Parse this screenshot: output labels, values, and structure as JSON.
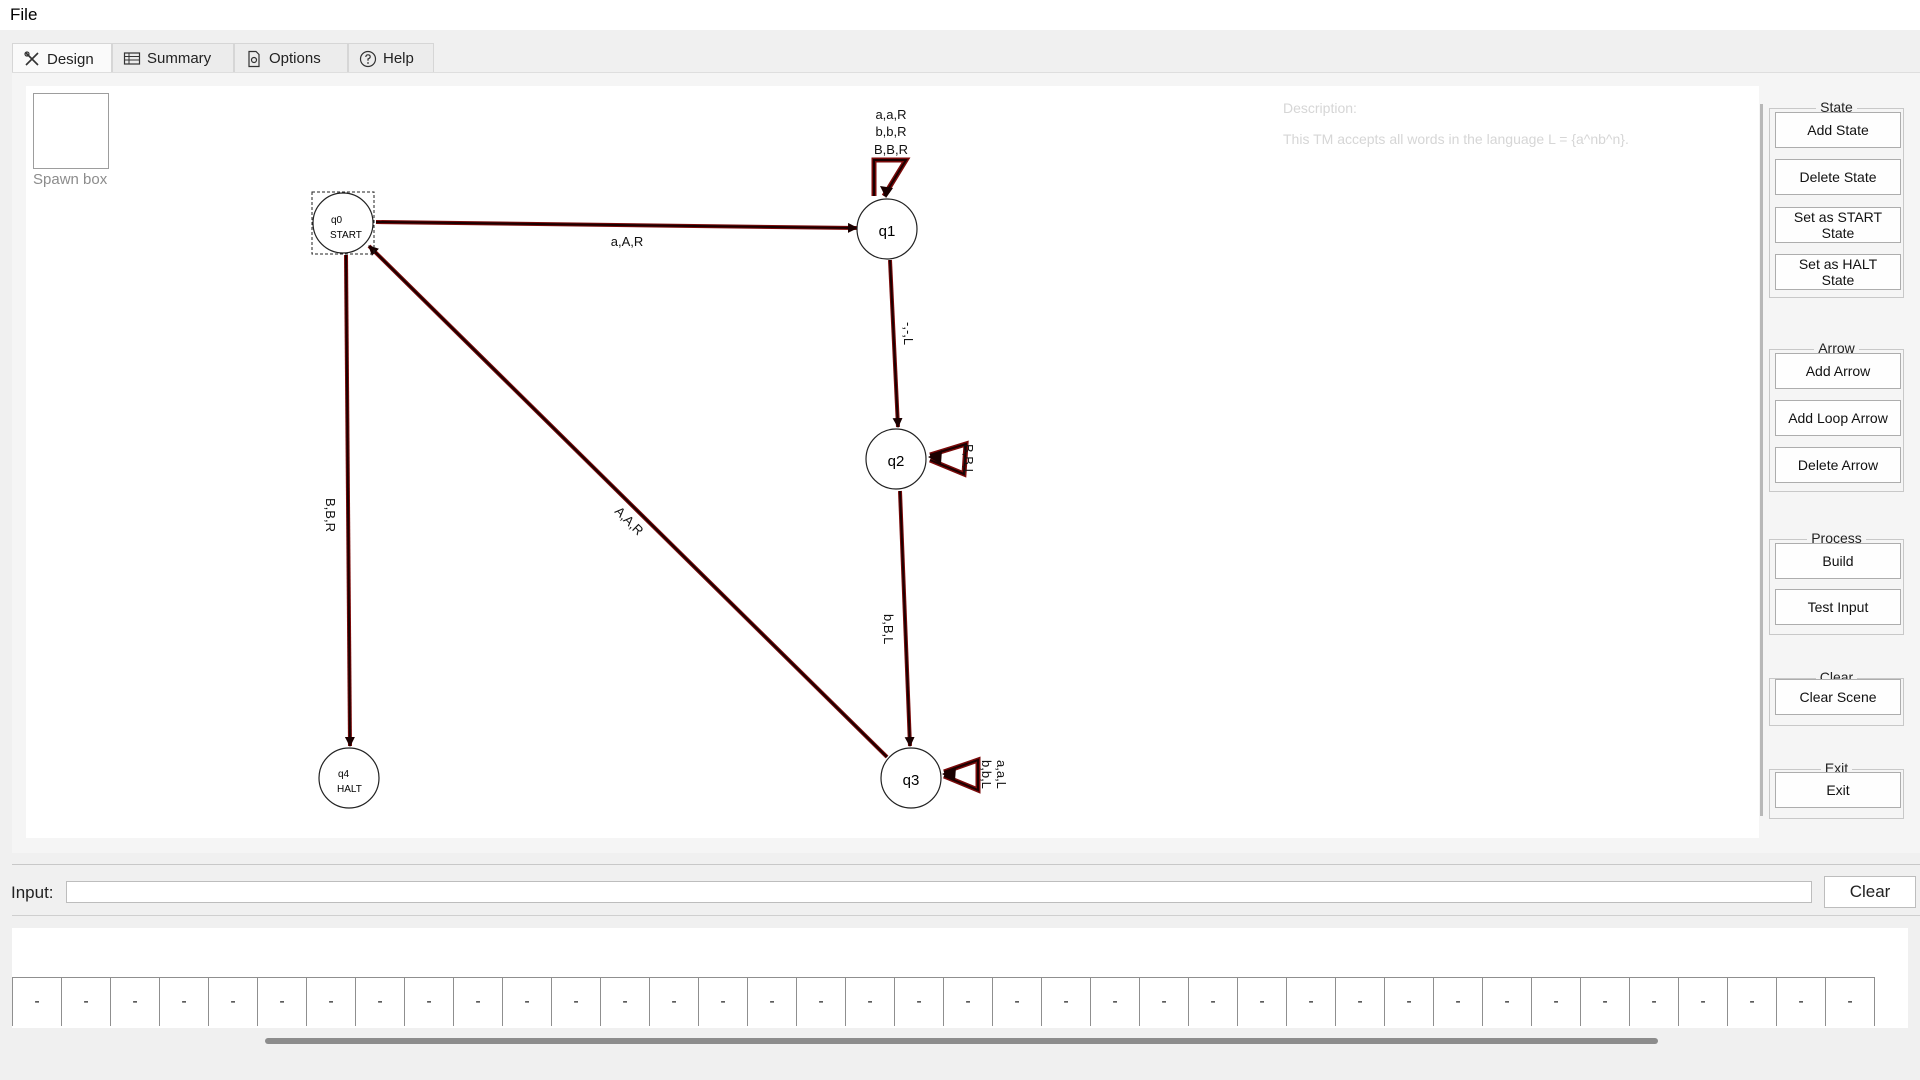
{
  "menu": {
    "file": "File"
  },
  "tabs": [
    {
      "label": "Design",
      "icon": "tools-icon",
      "active": true
    },
    {
      "label": "Summary",
      "icon": "table-icon",
      "active": false
    },
    {
      "label": "Options",
      "icon": "document-gear-icon",
      "active": false
    },
    {
      "label": "Help",
      "icon": "help-circle-icon",
      "active": false
    }
  ],
  "canvas": {
    "spawn_label": "Spawn box",
    "description_title": "Description:",
    "description_text": "This TM accepts all words in the language L = {a^nb^n}."
  },
  "states": [
    {
      "id": "q0",
      "label": "q0",
      "sublabel": "START",
      "selected": true
    },
    {
      "id": "q1",
      "label": "q1",
      "sublabel": ""
    },
    {
      "id": "q2",
      "label": "q2",
      "sublabel": ""
    },
    {
      "id": "q3",
      "label": "q3",
      "sublabel": ""
    },
    {
      "id": "q4",
      "label": "q4",
      "sublabel": "HALT"
    }
  ],
  "transitions": {
    "q1_loop": [
      "a,a,R",
      "b,b,R",
      "B,B,R"
    ],
    "q0_q1": "a,A,R",
    "q1_q2": "-,-,L",
    "q2_loop": "B,B,L",
    "q2_q3": "b,B,L",
    "q3_loop": [
      "a,a,L",
      "b,b,L"
    ],
    "q3_q0": "A,A,R",
    "q0_q4": "B,B,R"
  },
  "sidebar": {
    "groups": [
      {
        "title": "State",
        "buttons": [
          "Add State",
          "Delete State",
          "Set as START State",
          "Set as HALT State"
        ]
      },
      {
        "title": "Arrow",
        "buttons": [
          "Add Arrow",
          "Add Loop Arrow",
          "Delete Arrow"
        ]
      },
      {
        "title": "Process",
        "buttons": [
          "Build",
          "Test Input"
        ]
      },
      {
        "title": "Clear",
        "buttons": [
          "Clear Scene"
        ]
      },
      {
        "title": "Exit",
        "buttons": [
          "Exit"
        ]
      }
    ]
  },
  "input_bar": {
    "label": "Input:",
    "value": "",
    "clear_label": "Clear"
  },
  "tape": {
    "cells": [
      "-",
      "-",
      "-",
      "-",
      "-",
      "-",
      "-",
      "-",
      "-",
      "-",
      "-",
      "-",
      "-",
      "-",
      "-",
      "-",
      "-",
      "-",
      "-",
      "-",
      "-",
      "-",
      "-",
      "-",
      "-",
      "-",
      "-",
      "-",
      "-",
      "-",
      "-",
      "-",
      "-",
      "-",
      "-",
      "-",
      "-",
      "-"
    ]
  },
  "colors": {
    "arrow": "#3a0000",
    "arrow_outline": "#7a0a0a"
  }
}
